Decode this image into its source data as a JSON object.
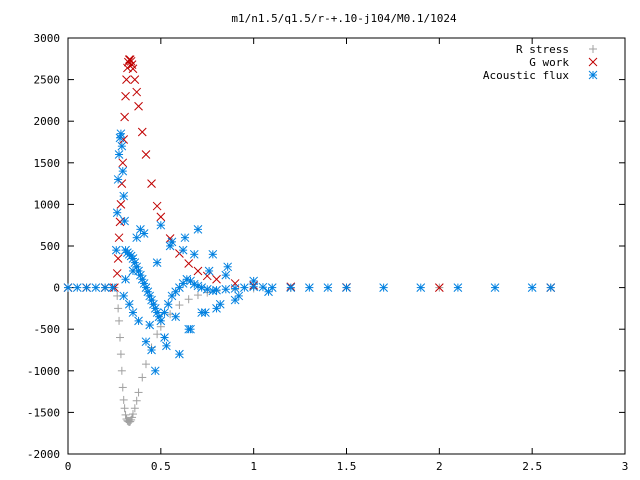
{
  "chart_data": {
    "type": "scatter",
    "title": "m1/n1.5/q1.5/r-+.10-j104/M0.1/1024",
    "xlabel": "",
    "ylabel": "",
    "xlim": [
      0,
      3
    ],
    "ylim": [
      -2000,
      3000
    ],
    "x_ticks": [
      0,
      0.5,
      1,
      1.5,
      2,
      2.5,
      3
    ],
    "x_tick_labels": [
      "0",
      "0.5",
      "1",
      "1.5",
      "2",
      "2.5",
      "3"
    ],
    "y_ticks": [
      -2000,
      -1500,
      -1000,
      -500,
      0,
      500,
      1000,
      1500,
      2000,
      2500,
      3000
    ],
    "y_tick_labels": [
      "-2000",
      "-1500",
      "-1000",
      "-500",
      "0",
      "500",
      "1000",
      "1500",
      "2000",
      "2500",
      "3000"
    ],
    "grid": false,
    "legend_position": "top-right",
    "series": [
      {
        "name": "R stress",
        "marker": "plus",
        "color": "#a0a0a0",
        "x": [
          0.0,
          0.1,
          0.2,
          0.25,
          0.265,
          0.27,
          0.275,
          0.28,
          0.285,
          0.29,
          0.295,
          0.3,
          0.305,
          0.31,
          0.315,
          0.32,
          0.325,
          0.33,
          0.335,
          0.34,
          0.345,
          0.35,
          0.36,
          0.37,
          0.38,
          0.4,
          0.42,
          0.45,
          0.48,
          0.5,
          0.55,
          0.6,
          0.65,
          0.7,
          0.75,
          0.8,
          0.9,
          1.0,
          1.2,
          1.5,
          2.0,
          2.6
        ],
        "y": [
          0,
          0,
          0,
          0,
          -100,
          -250,
          -400,
          -600,
          -800,
          -1000,
          -1200,
          -1350,
          -1450,
          -1530,
          -1580,
          -1600,
          -1610,
          -1615,
          -1610,
          -1590,
          -1560,
          -1520,
          -1450,
          -1360,
          -1260,
          -1080,
          -920,
          -720,
          -560,
          -470,
          -320,
          -210,
          -140,
          -90,
          -60,
          -40,
          -20,
          -10,
          -5,
          0,
          0,
          0
        ]
      },
      {
        "name": "G work",
        "marker": "x",
        "color": "#c00000",
        "x": [
          0.0,
          0.1,
          0.2,
          0.25,
          0.265,
          0.27,
          0.275,
          0.28,
          0.285,
          0.29,
          0.295,
          0.3,
          0.305,
          0.31,
          0.315,
          0.32,
          0.325,
          0.33,
          0.335,
          0.34,
          0.345,
          0.35,
          0.36,
          0.37,
          0.38,
          0.4,
          0.42,
          0.45,
          0.48,
          0.5,
          0.55,
          0.6,
          0.65,
          0.7,
          0.75,
          0.8,
          0.9,
          1.0,
          1.2,
          1.5,
          2.0,
          2.6
        ],
        "y": [
          0,
          0,
          0,
          0,
          170,
          350,
          600,
          790,
          1000,
          1250,
          1500,
          1780,
          2050,
          2300,
          2500,
          2640,
          2710,
          2740,
          2740,
          2720,
          2680,
          2630,
          2500,
          2350,
          2180,
          1870,
          1600,
          1250,
          980,
          850,
          590,
          410,
          290,
          200,
          140,
          100,
          50,
          25,
          10,
          3,
          0,
          0
        ]
      },
      {
        "name": "Acoustic flux",
        "marker": "star",
        "color": "#0080e0",
        "x": [
          0.0,
          0.05,
          0.1,
          0.15,
          0.2,
          0.24,
          0.26,
          0.265,
          0.27,
          0.275,
          0.28,
          0.285,
          0.29,
          0.295,
          0.3,
          0.305,
          0.31,
          0.32,
          0.33,
          0.34,
          0.35,
          0.36,
          0.37,
          0.38,
          0.39,
          0.4,
          0.41,
          0.42,
          0.43,
          0.44,
          0.45,
          0.46,
          0.47,
          0.48,
          0.49,
          0.5,
          0.52,
          0.54,
          0.56,
          0.58,
          0.6,
          0.62,
          0.64,
          0.66,
          0.68,
          0.7,
          0.72,
          0.75,
          0.78,
          0.8,
          0.85,
          0.9,
          0.95,
          1.0,
          1.05,
          1.1,
          1.2,
          1.3,
          1.4,
          1.5,
          1.7,
          1.9,
          2.1,
          2.3,
          2.5,
          2.6,
          0.3,
          0.31,
          0.33,
          0.35,
          0.37,
          0.39,
          0.42,
          0.44,
          0.47,
          0.5,
          0.53,
          0.56,
          0.6,
          0.63,
          0.66,
          0.7,
          0.74,
          0.78,
          0.82,
          0.86,
          0.9,
          0.35,
          0.38,
          0.41,
          0.45,
          0.48,
          0.52,
          0.55,
          0.58,
          0.62,
          0.65,
          0.68,
          0.72,
          0.76,
          0.8,
          0.85,
          0.92,
          1.0,
          1.08
        ],
        "y": [
          0,
          0,
          0,
          0,
          0,
          0,
          450,
          900,
          1300,
          1600,
          1800,
          1850,
          1700,
          1400,
          1100,
          800,
          450,
          420,
          400,
          380,
          350,
          300,
          250,
          200,
          150,
          100,
          50,
          0,
          -50,
          -100,
          -150,
          -200,
          -250,
          -300,
          -350,
          -400,
          -300,
          -200,
          -100,
          -50,
          0,
          50,
          100,
          80,
          40,
          20,
          0,
          -20,
          -40,
          -30,
          -20,
          -10,
          0,
          10,
          5,
          0,
          0,
          0,
          0,
          0,
          0,
          0,
          0,
          0,
          0,
          0,
          -100,
          100,
          -200,
          -300,
          600,
          700,
          -650,
          -450,
          -1000,
          750,
          -700,
          550,
          -800,
          600,
          -500,
          700,
          -300,
          400,
          -200,
          250,
          -150,
          200,
          -400,
          650,
          -750,
          300,
          -600,
          500,
          -350,
          450,
          -500,
          400,
          -300,
          200,
          -250,
          150,
          -100,
          80,
          -50
        ]
      }
    ]
  }
}
